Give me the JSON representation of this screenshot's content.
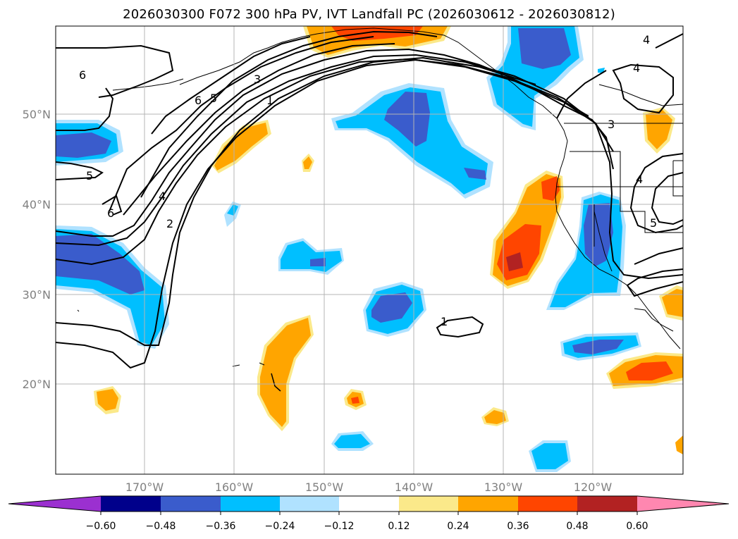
{
  "title": "2026030300 F072 300 hPa PV, IVT Landfall PC (2026030612 - 2026030812)",
  "colors": {
    "neg_060": "#9b30d0",
    "neg_048": "#00008b",
    "neg_036": "#3a5ccc",
    "neg_024": "#00bfff",
    "neg_012": "#b0e2ff",
    "zero": "#ffffff",
    "pos_012": "#fbe98a",
    "pos_024": "#ffa500",
    "pos_036": "#ff4500",
    "pos_048": "#b22222",
    "pos_060": "#ff87b0",
    "grid": "#b4b4b4",
    "contour": "#000000",
    "label_gray": "#808080"
  },
  "map": {
    "lat_labels": [
      "50°N",
      "40°N",
      "30°N",
      "20°N"
    ],
    "lon_labels": [
      "170°W",
      "160°W",
      "150°W",
      "140°W",
      "130°W",
      "120°W"
    ]
  },
  "contour_labels": [
    "6",
    "6",
    "5",
    "3",
    "1",
    "5",
    "6",
    "4",
    "2",
    "1",
    "4",
    "4",
    "3",
    "4",
    "5"
  ],
  "colorbar": {
    "ticks": [
      "−0.60",
      "−0.48",
      "−0.36",
      "−0.24",
      "−0.12",
      "0.12",
      "0.24",
      "0.36",
      "0.48",
      "0.60"
    ]
  }
}
